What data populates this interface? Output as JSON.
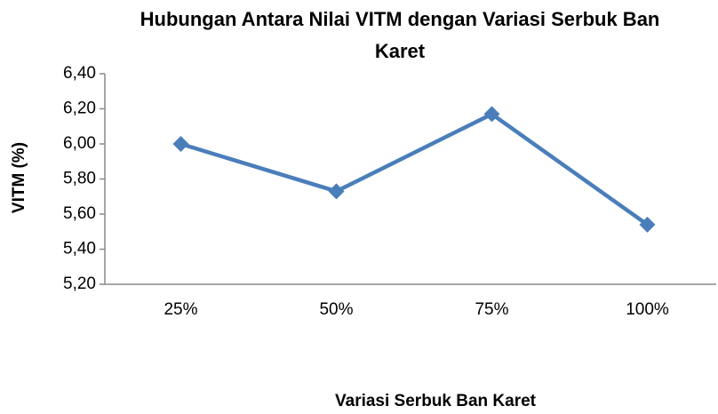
{
  "chart_data": {
    "type": "line",
    "title": "Hubungan Antara Nilai VITM dengan Variasi Serbuk Ban Karet",
    "xlabel": "Variasi  Serbuk Ban Karet",
    "ylabel": "VITM  (%)",
    "categories": [
      "25%",
      "50%",
      "75%",
      "100%"
    ],
    "series": [
      {
        "name": "VITM",
        "color": "#4a7ebb",
        "values": [
          6.0,
          5.73,
          6.17,
          5.54
        ]
      }
    ],
    "ylim": [
      5.2,
      6.4
    ],
    "yticks": [
      {
        "value": 5.2,
        "label": "5,20"
      },
      {
        "value": 5.4,
        "label": "5,40"
      },
      {
        "value": 5.6,
        "label": "5,60"
      },
      {
        "value": 5.8,
        "label": "5,80"
      },
      {
        "value": 6.0,
        "label": "6,00"
      },
      {
        "value": 6.2,
        "label": "6,20"
      },
      {
        "value": 6.4,
        "label": "6,40"
      }
    ],
    "grid": false,
    "legend": false
  }
}
